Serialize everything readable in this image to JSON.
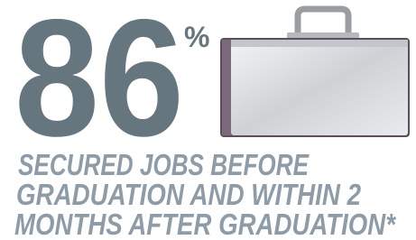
{
  "stat": {
    "value": 86,
    "unit": "%"
  },
  "caption": {
    "lines": [
      "SECURED JOBS BEFORE",
      "GRADUATION AND WITHIN 2",
      "MONTHS AFTER GRADUATION*"
    ]
  }
}
